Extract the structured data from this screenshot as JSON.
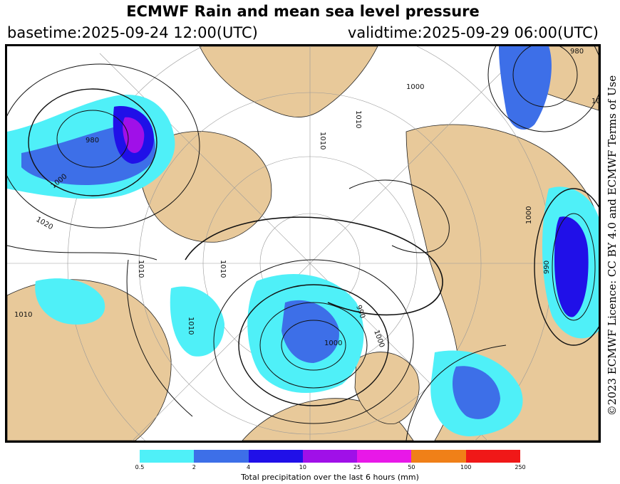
{
  "header": {
    "title": "ECMWF Rain and mean sea level pressure",
    "basetime": "basetime:2025-09-24 12:00(UTC)",
    "validtime": "validtime:2025-09-29 06:00(UTC)"
  },
  "licence": "©2023 ECMWF Licence: CC BY 4.0 and ECMWF Terms of Use",
  "isobar_labels": [
    "980",
    "1000",
    "1020",
    "1010",
    "1010",
    "1010",
    "1010",
    "1010",
    "1000",
    "990",
    "1000",
    "990",
    "1000",
    "1010",
    "980",
    "1000",
    "1010"
  ],
  "legend": {
    "colors": [
      "#4ff0f8",
      "#3d6fe8",
      "#2010e8",
      "#a010e8",
      "#e818e8",
      "#f08018",
      "#f01818"
    ],
    "ticks": [
      "0.5",
      "2",
      "4",
      "10",
      "25",
      "50",
      "100",
      "250"
    ],
    "label": "Total precipitation over the last 6 hours (mm)"
  }
}
